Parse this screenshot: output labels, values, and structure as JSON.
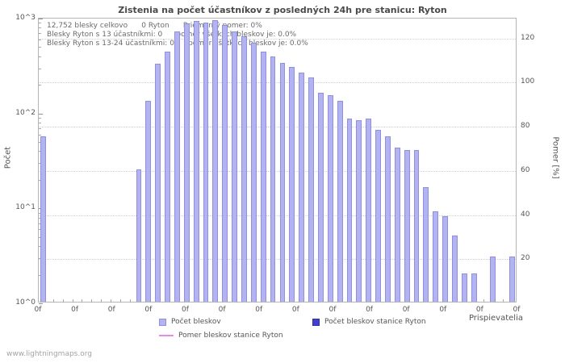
{
  "page": {
    "title": "Zistenia na počet účastníkov z posledných 24h pre stanicu: Ryton",
    "watermark": "www.lightningmaps.org"
  },
  "annotations": {
    "line1": "12,752 blesky celkovo      0 Ryton      Priemerný pomer: 0%",
    "line2": "Blesky Ryton s 13 účastníkmi: 0      pomer všetkých bleskov je: 0.0%",
    "line3": "Blesky Ryton s 13-24 účastníkmi: 0      pomer všetkých bleskov je: 0.0%"
  },
  "legend": {
    "items": [
      {
        "label": "Počet bleskov",
        "swatch": "bar-light"
      },
      {
        "label": "Počet bleskov stanice Ryton",
        "swatch": "bar-dark"
      },
      {
        "label": "Pomer bleskov stanice Ryton",
        "swatch": "line-pink"
      }
    ]
  },
  "colors": {
    "bar": "#b3b3f2",
    "bar_border": "#9090e0",
    "station_bar": "#4040cc",
    "station_bar_border": "#3030aa",
    "ratio_line": "#ee88dd"
  },
  "chart_data": {
    "type": "bar",
    "title": "Zistenia na počet účastníkov z posledných 24h pre stanicu: Ryton",
    "xlabel": "Prispievatelia",
    "left_axis": {
      "label": "Počet",
      "scale": "log",
      "range": [
        1,
        1000
      ],
      "ticks": [
        "10^0",
        "10^1",
        "10^2",
        "10^3"
      ]
    },
    "right_axis": {
      "label": "Pomer [%]",
      "ticks": [
        20,
        40,
        60,
        80,
        100,
        120
      ],
      "max": 129
    },
    "x_axis": {
      "tick_labels": [
        "0f",
        "0f",
        "0f",
        "0f",
        "0f",
        "0f",
        "0f",
        "0f",
        "0f",
        "0f",
        "0f",
        "0f",
        "0f",
        "0f"
      ]
    },
    "grid": true,
    "legend_position": "bottom",
    "categories": [
      1,
      2,
      3,
      4,
      5,
      6,
      7,
      8,
      9,
      10,
      11,
      12,
      13,
      14,
      15,
      16,
      17,
      18,
      19,
      20,
      21,
      22,
      23,
      24,
      25,
      26,
      27,
      28,
      29,
      30,
      31,
      32,
      33,
      34,
      35,
      36,
      37,
      38,
      39,
      40,
      41,
      42,
      43,
      44,
      45,
      46,
      47,
      48,
      49,
      50
    ],
    "series": [
      {
        "name": "Počet bleskov",
        "type": "bar",
        "color": "#b3b3f2",
        "border": "#9090e0",
        "values": [
          55,
          0,
          0,
          0,
          0,
          0,
          0,
          0,
          0,
          0,
          25,
          130,
          320,
          430,
          700,
          860,
          900,
          870,
          920,
          830,
          700,
          620,
          540,
          430,
          380,
          330,
          300,
          260,
          230,
          160,
          150,
          130,
          85,
          82,
          85,
          65,
          55,
          42,
          40,
          40,
          16,
          9,
          8,
          5,
          2,
          2,
          0,
          3,
          0,
          3
        ]
      },
      {
        "name": "Počet bleskov stanice Ryton",
        "type": "bar",
        "color": "#4040cc",
        "border": "#3030aa",
        "values": [
          0,
          0,
          0,
          0,
          0,
          0,
          0,
          0,
          0,
          0,
          0,
          0,
          0,
          0,
          0,
          0,
          0,
          0,
          0,
          0,
          0,
          0,
          0,
          0,
          0,
          0,
          0,
          0,
          0,
          0,
          0,
          0,
          0,
          0,
          0,
          0,
          0,
          0,
          0,
          0,
          0,
          0,
          0,
          0,
          0,
          0,
          0,
          0,
          0,
          0
        ]
      },
      {
        "name": "Pomer bleskov stanice Ryton",
        "type": "line",
        "color": "#ee88dd",
        "values": [
          0,
          0,
          0,
          0,
          0,
          0,
          0,
          0,
          0,
          0,
          0,
          0,
          0,
          0,
          0,
          0,
          0,
          0,
          0,
          0,
          0,
          0,
          0,
          0,
          0,
          0,
          0,
          0,
          0,
          0,
          0,
          0,
          0,
          0,
          0,
          0,
          0,
          0,
          0,
          0,
          0,
          0,
          0,
          0,
          0,
          0,
          0,
          0,
          0,
          0
        ]
      }
    ]
  }
}
